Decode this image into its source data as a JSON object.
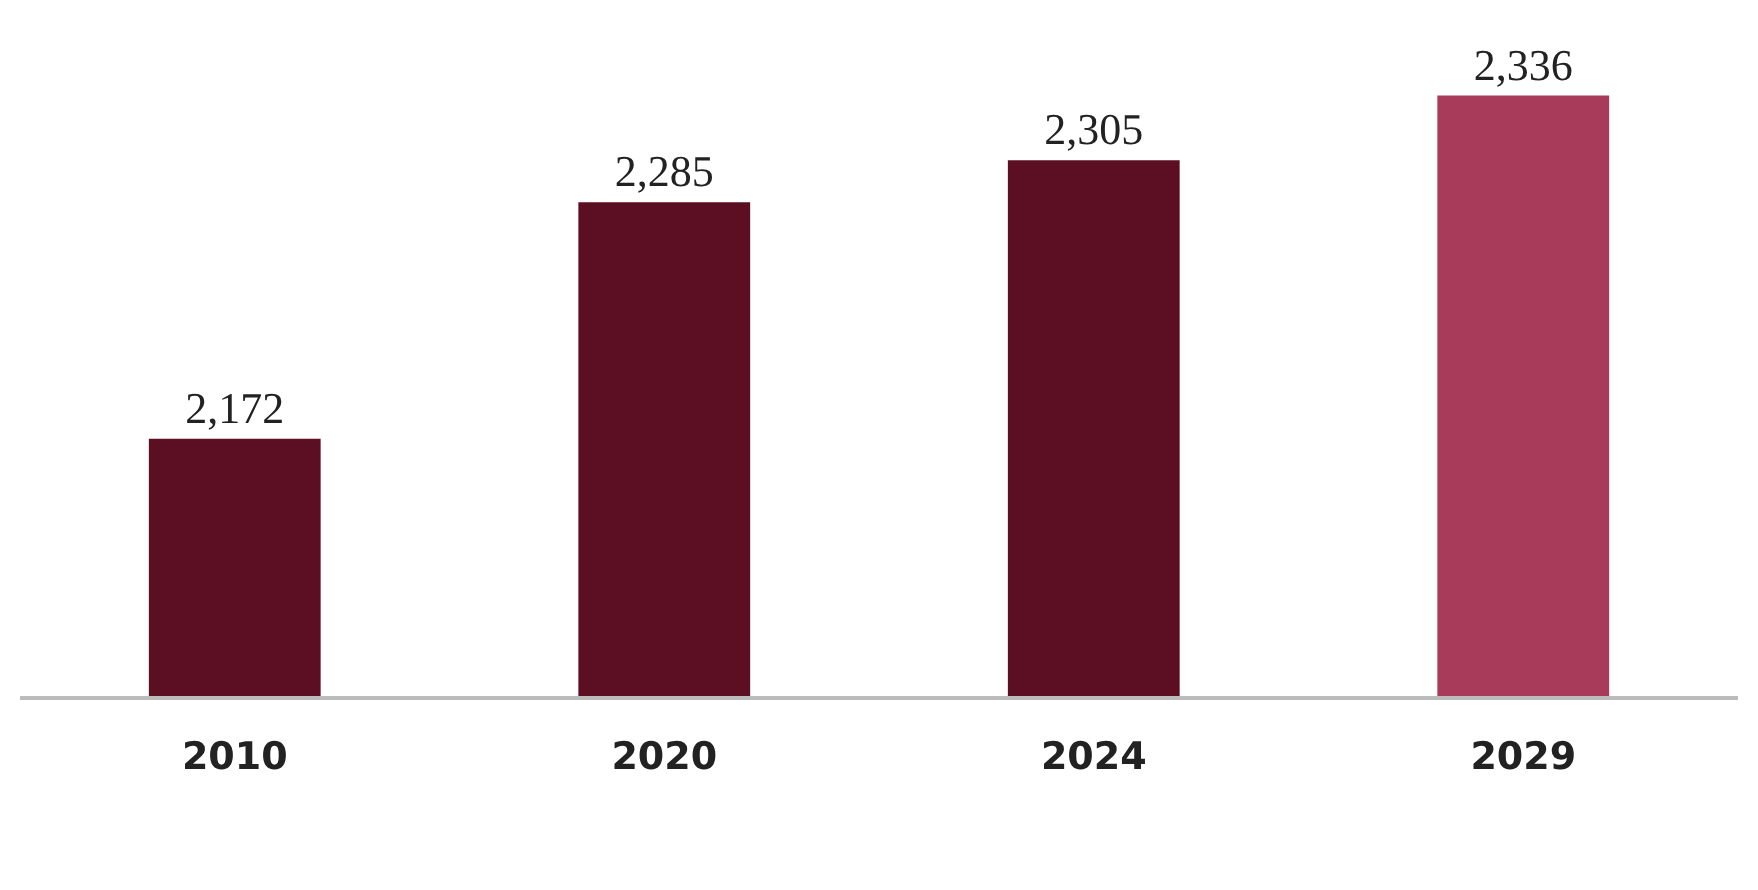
{
  "chart_data": {
    "type": "bar",
    "categories": [
      "2010",
      "2020",
      "2024",
      "2029"
    ],
    "values": [
      2172,
      2285,
      2305,
      2336
    ],
    "value_labels": [
      "2,172",
      "2,285",
      "2,305",
      "2,336"
    ],
    "colors": [
      "#5c0f22",
      "#5c0f22",
      "#5c0f22",
      "#a83a5a"
    ],
    "tick_labels": "x",
    "legend": false
  }
}
